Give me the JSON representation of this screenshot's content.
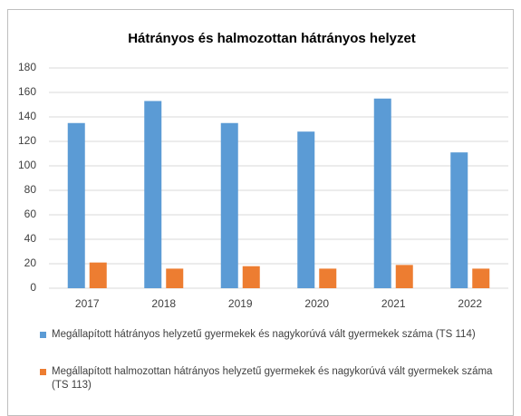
{
  "chart_data": {
    "type": "bar",
    "title": "Hátrányos és halmozottan hátrányos helyzet",
    "categories": [
      "2017",
      "2018",
      "2019",
      "2020",
      "2021",
      "2022"
    ],
    "series": [
      {
        "name": "Megállapított hátrányos helyzetű gyermekek és nagykorúvá vált gyermekek száma (TS 114)",
        "color": "#5b9bd5",
        "values": [
          135,
          153,
          135,
          128,
          155,
          111
        ]
      },
      {
        "name": "Megállapított halmozottan hátrányos helyzetű gyermekek és nagykorúvá vált gyermekek száma (TS 113)",
        "color": "#ed7d31",
        "values": [
          21,
          16,
          18,
          16,
          19,
          16
        ]
      }
    ],
    "ylim": [
      0,
      180
    ],
    "yticks": [
      0,
      20,
      40,
      60,
      80,
      100,
      120,
      140,
      160,
      180
    ],
    "grid": true,
    "legend": "bottom"
  }
}
